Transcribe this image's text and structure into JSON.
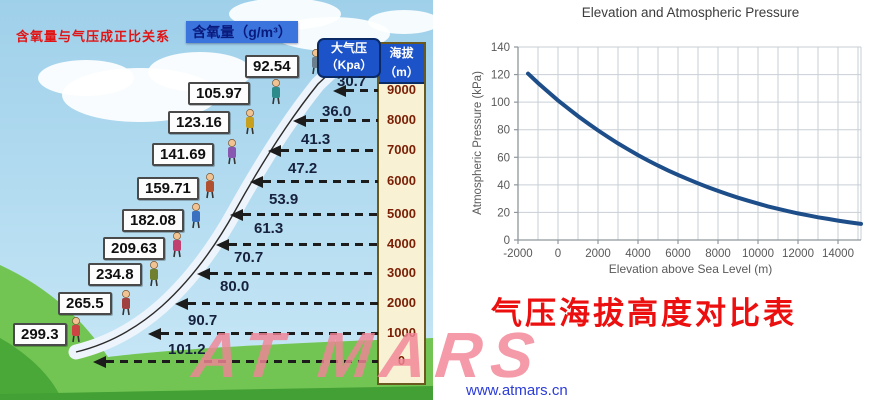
{
  "infographic": {
    "title": "含氧量与气压成正比关系",
    "oxygen_header": "含氧量（g/m³）",
    "pressure_header_line1": "大气压",
    "pressure_header_line2": "（Kpa）",
    "elevation_header_line1": "海拔",
    "elevation_header_line2": "（m）",
    "rows": [
      {
        "oxygen": "92.54",
        "pressure": "30.7",
        "elevation": "9000"
      },
      {
        "oxygen": "105.97",
        "pressure": "36.0",
        "elevation": "8000"
      },
      {
        "oxygen": "123.16",
        "pressure": "41.3",
        "elevation": "7000"
      },
      {
        "oxygen": "141.69",
        "pressure": "47.2",
        "elevation": "6000"
      },
      {
        "oxygen": "159.71",
        "pressure": "53.9",
        "elevation": "5000"
      },
      {
        "oxygen": "182.08",
        "pressure": "61.3",
        "elevation": "4000"
      },
      {
        "oxygen": "209.63",
        "pressure": "70.7",
        "elevation": "3000"
      },
      {
        "oxygen": "234.8",
        "pressure": "80.0",
        "elevation": "2000"
      },
      {
        "oxygen": "265.5",
        "pressure": "90.7",
        "elevation": "1000"
      },
      {
        "oxygen": "299.3",
        "pressure": "101.2",
        "elevation": "0"
      }
    ]
  },
  "chart_data": [
    {
      "type": "line",
      "title": "Elevation and Atmospheric Pressure",
      "xlabel": "Elevation above Sea Level (m)",
      "ylabel": "Atmospheric Pressure (kPa)",
      "xlim": [
        -2000,
        15150
      ],
      "ylim": [
        0,
        140
      ],
      "xticks": [
        -2000,
        0,
        2000,
        4000,
        6000,
        8000,
        10000,
        12000,
        14000
      ],
      "yticks": [
        0,
        20,
        40,
        60,
        80,
        100,
        120,
        140
      ],
      "grid": true,
      "minor_x_step": 1000,
      "legend": "none",
      "line_color": "#1d4e89",
      "x": [
        -1500,
        -1000,
        -500,
        0,
        500,
        1000,
        1500,
        2000,
        2500,
        3000,
        3500,
        4000,
        4500,
        5000,
        5500,
        6000,
        6500,
        7000,
        7500,
        8000,
        8500,
        9000,
        9500,
        10000,
        10500,
        11000,
        11500,
        12000,
        12500,
        13000,
        13500,
        14000,
        14500,
        15000,
        15150
      ],
      "y": [
        120.7,
        113.9,
        107.5,
        101.3,
        95.5,
        89.9,
        84.6,
        79.5,
        74.7,
        70.1,
        65.8,
        61.6,
        57.7,
        54.0,
        50.5,
        47.2,
        44.1,
        41.1,
        38.3,
        35.6,
        33.1,
        30.7,
        28.5,
        26.4,
        24.4,
        22.6,
        20.9,
        19.3,
        17.9,
        16.5,
        15.3,
        14.1,
        13.0,
        12.0,
        11.7
      ]
    },
    {
      "type": "table",
      "title": "含氧量与气压成正比关系",
      "columns": [
        "含氧量（g/m³）",
        "大气压（Kpa）",
        "海拔（m）"
      ],
      "rows": [
        [
          92.54,
          30.7,
          9000
        ],
        [
          105.97,
          36.0,
          8000
        ],
        [
          123.16,
          41.3,
          7000
        ],
        [
          141.69,
          47.2,
          6000
        ],
        [
          159.71,
          53.9,
          5000
        ],
        [
          182.08,
          61.3,
          4000
        ],
        [
          209.63,
          70.7,
          3000
        ],
        [
          234.8,
          80.0,
          2000
        ],
        [
          265.5,
          90.7,
          1000
        ],
        [
          299.3,
          101.2,
          0
        ]
      ]
    }
  ],
  "caption": "气压海拔高度对比表",
  "watermark": {
    "logo": "AT MARS",
    "url": "www.atmars.cn"
  },
  "colors": {
    "accent_red": "#e21313",
    "header_blue": "#1d53c8",
    "column_cream": "#f8f1d4",
    "elevation_text": "#7a1e04",
    "line_blue": "#1d4e89",
    "watermark_pink": "#f28496",
    "sky_blue": "#a8d7ee",
    "hill_green": "#72c553"
  }
}
